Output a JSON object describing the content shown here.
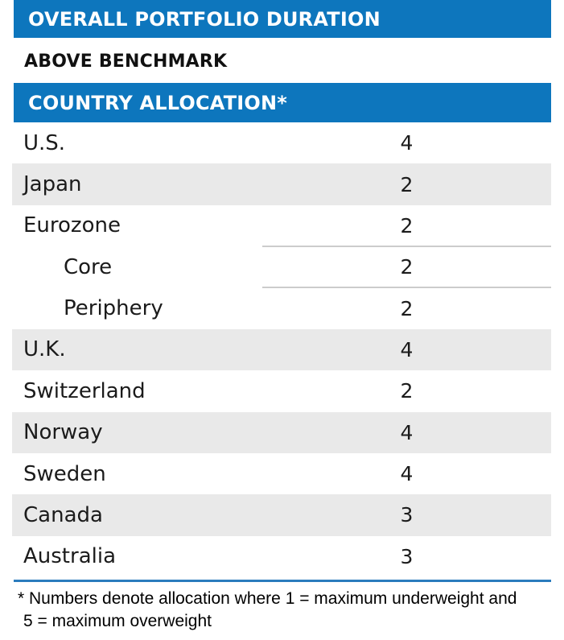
{
  "chart_data": {
    "type": "table",
    "duration_header": "OVERALL PORTFOLIO DURATION",
    "duration_status": "ABOVE BENCHMARK",
    "allocation_header": "COUNTRY ALLOCATION*",
    "value_scale": {
      "min": 1,
      "max": 5
    },
    "rows": [
      {
        "label": "U.S.",
        "value": 4,
        "indent": false,
        "shaded": false,
        "separator_below": false
      },
      {
        "label": "Japan",
        "value": 2,
        "indent": false,
        "shaded": true,
        "separator_below": false
      },
      {
        "label": "Eurozone",
        "value": 2,
        "indent": false,
        "shaded": false,
        "separator_below": true
      },
      {
        "label": "Core",
        "value": 2,
        "indent": true,
        "shaded": false,
        "separator_below": true
      },
      {
        "label": "Periphery",
        "value": 2,
        "indent": true,
        "shaded": false,
        "separator_below": false
      },
      {
        "label": "U.K.",
        "value": 4,
        "indent": false,
        "shaded": true,
        "separator_below": false
      },
      {
        "label": "Switzerland",
        "value": 2,
        "indent": false,
        "shaded": false,
        "separator_below": false
      },
      {
        "label": "Norway",
        "value": 4,
        "indent": false,
        "shaded": true,
        "separator_below": false
      },
      {
        "label": "Sweden",
        "value": 4,
        "indent": false,
        "shaded": false,
        "separator_below": false
      },
      {
        "label": "Canada",
        "value": 3,
        "indent": false,
        "shaded": true,
        "separator_below": false
      },
      {
        "label": "Australia",
        "value": 3,
        "indent": false,
        "shaded": false,
        "separator_below": false
      }
    ],
    "footnote_line1": "* Numbers denote allocation where 1 = maximum underweight and",
    "footnote_line2": "5 = maximum overweight"
  },
  "colors": {
    "header_bg": "#0d76bd",
    "header_text": "#ffffff",
    "row_shade": "#e9e9e9",
    "separator": "#cccccc",
    "footer_rule": "#2b7cbd",
    "text": "#1b1b1b"
  }
}
